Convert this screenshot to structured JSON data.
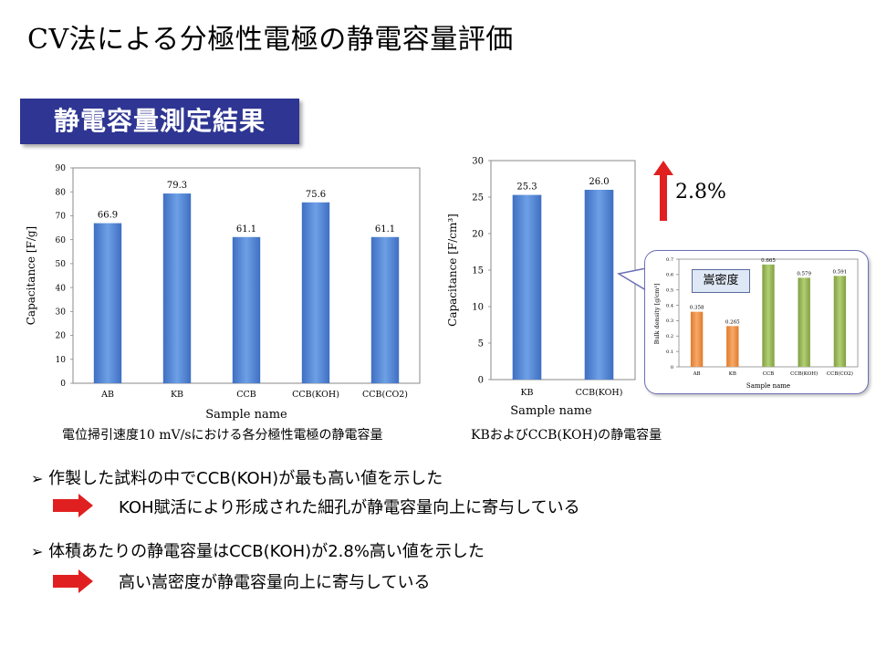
{
  "title": "CV法による分極性電極の静電容量評価",
  "section_badge": "静電容量測定結果",
  "chart1_caption": "電位掃引速度10 mV/sにおける各分極性電極の静電容量",
  "chart2_caption": "KBおよびCCB(KOH)の静電容量",
  "increase_label": "2.8%",
  "inset_label": "嵩密度",
  "colors": {
    "badge": "#2e3592",
    "bar_blue": "#4f86d6",
    "bar_orange": "#f2984b",
    "bar_green": "#9bbb59",
    "arrow_red": "#e02020"
  },
  "bullets": [
    {
      "text": "作製した試料の中でCCB(KOH)が最も高い値を示した",
      "sub": "KOH賦活により形成された細孔が静電容量向上に寄与している"
    },
    {
      "text": "体積あたりの静電容量はCCB(KOH)が2.8%高い値を示した",
      "sub": "高い嵩密度が静電容量向上に寄与している"
    }
  ],
  "chart_data": [
    {
      "type": "bar",
      "categories": [
        "AB",
        "KB",
        "CCB",
        "CCB(KOH)",
        "CCB(CO2)"
      ],
      "values": [
        66.9,
        79.3,
        61.1,
        75.6,
        61.1
      ],
      "value_labels": [
        "66.9",
        "79.3",
        "61.1",
        "75.6",
        "61.1"
      ],
      "xlabel": "Sample name",
      "ylabel": "Capacitance [F/g]",
      "ylim": [
        0,
        90
      ],
      "yticks": [
        "0",
        "10",
        "20",
        "30",
        "40",
        "50",
        "60",
        "70",
        "80",
        "90"
      ],
      "grid": false
    },
    {
      "type": "bar",
      "categories": [
        "KB",
        "CCB(KOH)"
      ],
      "values": [
        25.3,
        26.0
      ],
      "value_labels": [
        "25.3",
        "26.0"
      ],
      "xlabel": "Sample name",
      "ylabel": "Capacitance [F/cm³]",
      "ylim": [
        0,
        30
      ],
      "yticks": [
        "0",
        "5",
        "10",
        "15",
        "20",
        "25",
        "30"
      ],
      "grid": false
    },
    {
      "type": "bar",
      "categories": [
        "AB",
        "KB",
        "CCB",
        "CCB(KOH)",
        "CCB(CO2)"
      ],
      "values": [
        0.358,
        0.265,
        0.665,
        0.579,
        0.591
      ],
      "value_labels": [
        "0.358",
        "0.265",
        "0.665",
        "0.579",
        "0.591"
      ],
      "xlabel": "Sample name",
      "ylabel": "Bulk density [g/cm³]",
      "ylim": [
        0,
        0.7
      ],
      "yticks": [
        "0",
        "0.1",
        "0.2",
        "0.3",
        "0.4",
        "0.5",
        "0.6",
        "0.7"
      ],
      "series_colors": [
        "#f2984b",
        "#f2984b",
        "#9bbb59",
        "#9bbb59",
        "#9bbb59"
      ],
      "grid": false
    }
  ]
}
